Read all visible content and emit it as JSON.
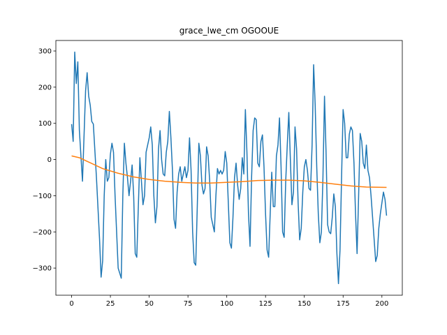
{
  "chart_data": {
    "type": "line",
    "title": "grace_lwe_cm OGOOUE",
    "xlim": [
      -10.15,
      213.15
    ],
    "ylim": [
      -375,
      329
    ],
    "xticks": [
      0,
      25,
      50,
      75,
      100,
      125,
      150,
      175,
      200
    ],
    "yticks": [
      {
        "value": -300,
        "label": "−300"
      },
      {
        "value": -200,
        "label": "−200"
      },
      {
        "value": -100,
        "label": "−100"
      },
      0,
      100,
      200,
      300
    ],
    "grid": false,
    "series": [
      {
        "color": "#1f77b4",
        "x": [
          0,
          1,
          2,
          3,
          4,
          5,
          7,
          9,
          10,
          11,
          12,
          13,
          14,
          16,
          18,
          19,
          20,
          21,
          22,
          23,
          24,
          25,
          26,
          27,
          28,
          29,
          30,
          32,
          33,
          34,
          35,
          36,
          37,
          38,
          39,
          40,
          41,
          42,
          43,
          44,
          45,
          46,
          47,
          48,
          50,
          51,
          52,
          53,
          54,
          55,
          56,
          57,
          58,
          59,
          60,
          61,
          62,
          63,
          64,
          65,
          66,
          67,
          68,
          69,
          70,
          71,
          72,
          73,
          74,
          75,
          76,
          77,
          78,
          79,
          80,
          81,
          82,
          83,
          84,
          85,
          86,
          87,
          88,
          89,
          90,
          91,
          92,
          93,
          94,
          95,
          96,
          97,
          98,
          99,
          100,
          101,
          102,
          103,
          104,
          105,
          106,
          107,
          108,
          109,
          110,
          111,
          112,
          113,
          114,
          115,
          116,
          117,
          118,
          119,
          120,
          121,
          122,
          123,
          124,
          125,
          126,
          127,
          128,
          129,
          130,
          131,
          132,
          133,
          134,
          135,
          136,
          137,
          138,
          139,
          140,
          141,
          142,
          143,
          144,
          145,
          146,
          147,
          148,
          149,
          150,
          151,
          152,
          153,
          154,
          155,
          156,
          157,
          158,
          159,
          160,
          161,
          162,
          163,
          164,
          165,
          166,
          167,
          168,
          169,
          170,
          171,
          172,
          173,
          174,
          175,
          176,
          177,
          178,
          179,
          180,
          181,
          182,
          183,
          184,
          185,
          186,
          187,
          188,
          189,
          190,
          191,
          192,
          193,
          194,
          196,
          197,
          198,
          199,
          200,
          201,
          202,
          203
        ],
        "values": [
          98,
          50,
          297,
          210,
          270,
          80,
          -60,
          190,
          240,
          175,
          150,
          105,
          98,
          -50,
          -220,
          -325,
          -280,
          -100,
          0,
          -60,
          -50,
          15,
          45,
          20,
          -100,
          -200,
          -300,
          -328,
          -100,
          45,
          -10,
          -50,
          -100,
          -60,
          -15,
          -100,
          -260,
          -270,
          -130,
          5,
          -60,
          -125,
          -100,
          20,
          60,
          90,
          40,
          -100,
          -175,
          -130,
          30,
          80,
          0,
          -40,
          -45,
          20,
          50,
          133,
          60,
          -30,
          -165,
          -190,
          -90,
          -40,
          -20,
          -60,
          -40,
          -20,
          -50,
          -30,
          60,
          -30,
          -200,
          -285,
          -292,
          -130,
          45,
          10,
          -70,
          -95,
          -80,
          35,
          10,
          -60,
          -160,
          -180,
          -200,
          -100,
          -25,
          -40,
          -30,
          -40,
          -30,
          22,
          -10,
          -120,
          -230,
          -245,
          -160,
          -50,
          -10,
          -70,
          -110,
          -80,
          5,
          -40,
          138,
          20,
          -150,
          -240,
          -50,
          80,
          115,
          110,
          -10,
          -20,
          50,
          68,
          -20,
          -150,
          -250,
          -270,
          -150,
          -35,
          -130,
          -130,
          10,
          40,
          115,
          -20,
          -200,
          -215,
          -60,
          40,
          130,
          0,
          -125,
          -90,
          90,
          30,
          -120,
          -222,
          -190,
          -90,
          -20,
          0,
          -30,
          -80,
          -85,
          40,
          262,
          150,
          -20,
          -150,
          -230,
          -200,
          -50,
          175,
          20,
          -180,
          -200,
          -205,
          -160,
          -95,
          -130,
          -260,
          -343,
          -250,
          -50,
          138,
          100,
          5,
          5,
          70,
          90,
          80,
          -10,
          -150,
          -260,
          -100,
          72,
          50,
          -10,
          -25,
          40,
          -30,
          -50,
          -100,
          -160,
          -282,
          -265,
          -190,
          -150,
          -120,
          -90,
          -110,
          -155
        ]
      },
      {
        "color": "#ff7f0e",
        "x": [
          0,
          5,
          10,
          20,
          30,
          40,
          50,
          60,
          70,
          80,
          90,
          100,
          110,
          120,
          130,
          140,
          150,
          160,
          170,
          180,
          190,
          203
        ],
        "values": [
          10,
          5,
          -5,
          -25,
          -38,
          -48,
          -55,
          -60,
          -63,
          -65,
          -65,
          -63,
          -61,
          -58,
          -57,
          -57,
          -59,
          -63,
          -68,
          -73,
          -76,
          -77
        ]
      }
    ]
  }
}
